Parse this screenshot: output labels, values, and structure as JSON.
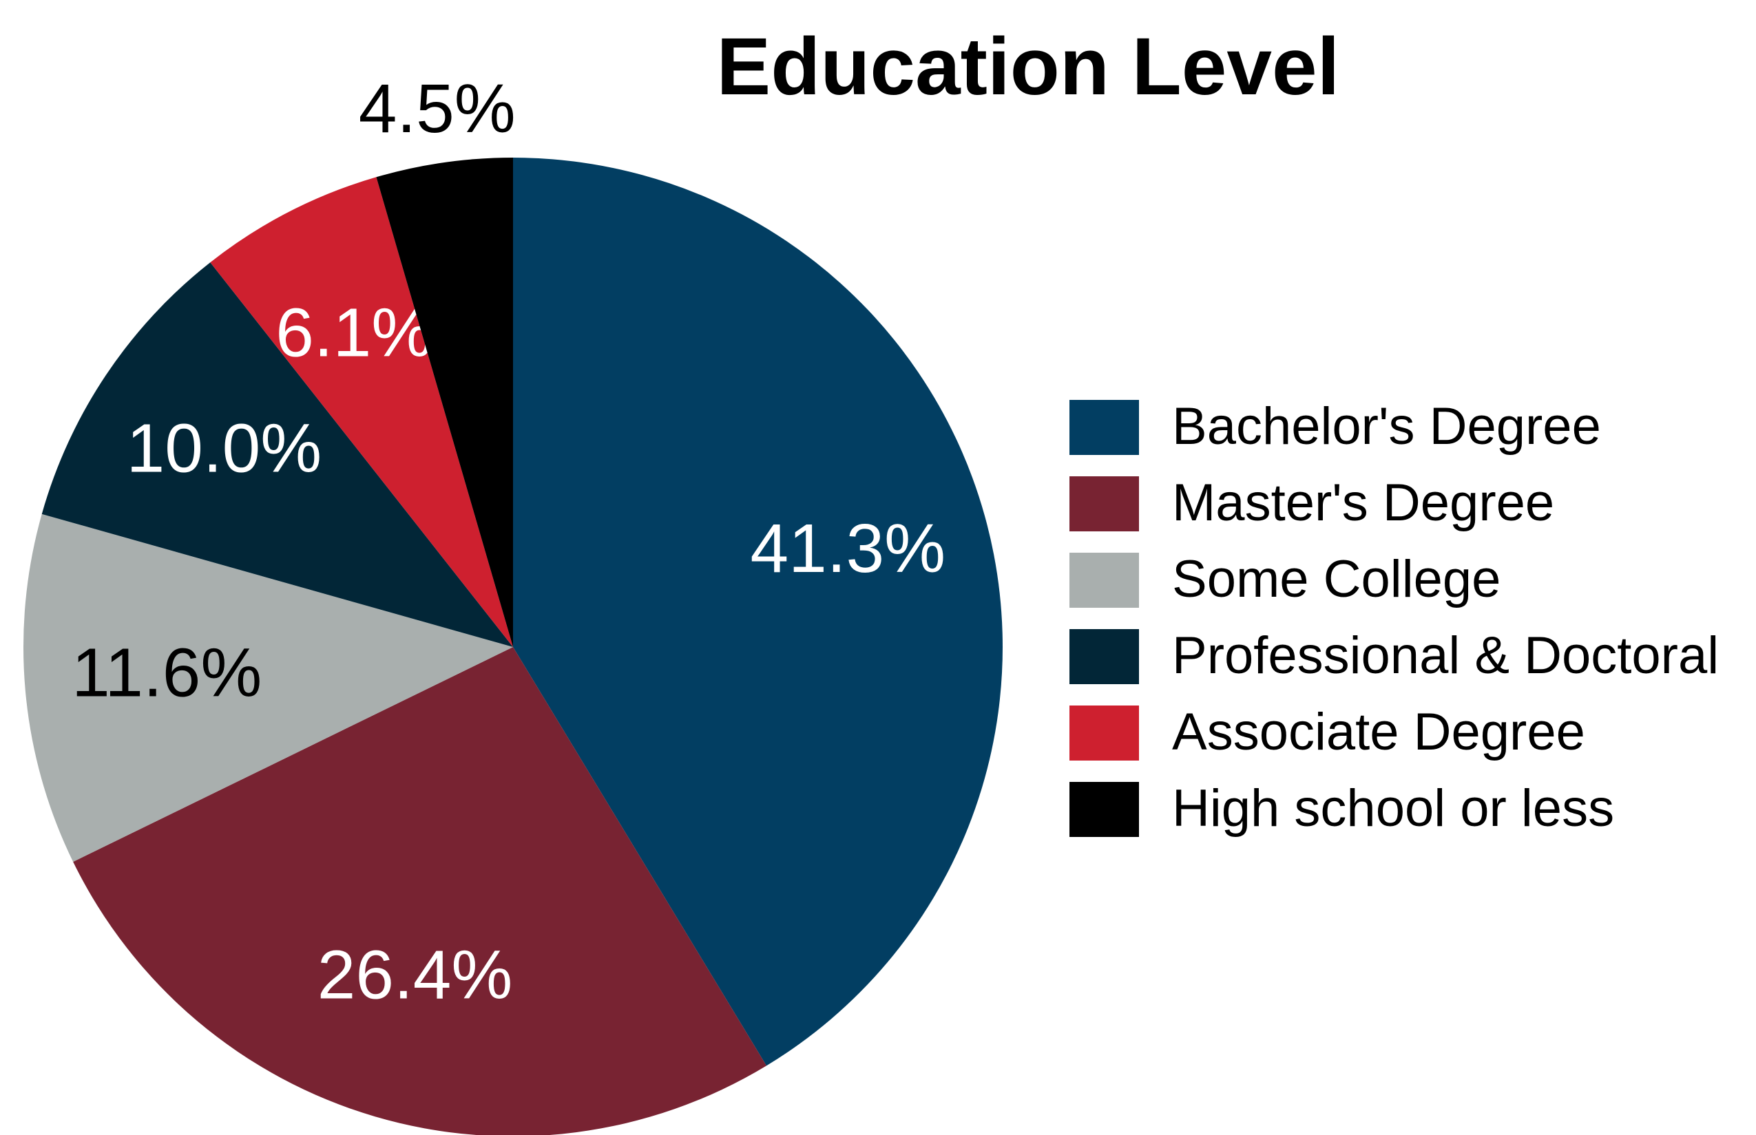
{
  "chart_data": {
    "type": "pie",
    "title": "Education Level",
    "categories": [
      "Bachelor's Degree",
      "Master's Degree",
      "Some College",
      "Professional & Doctoral",
      "Associate Degree",
      "High school or less"
    ],
    "values": [
      41.3,
      26.4,
      11.6,
      10.0,
      6.1,
      4.5
    ],
    "value_labels": [
      "41.3%",
      "26.4%",
      "11.6%",
      "10.0%",
      "6.1%",
      "4.5%"
    ],
    "colors": [
      "#023e62",
      "#782332",
      "#a9afae",
      "#022637",
      "#ce202f",
      "#000000"
    ],
    "legend": "right"
  }
}
